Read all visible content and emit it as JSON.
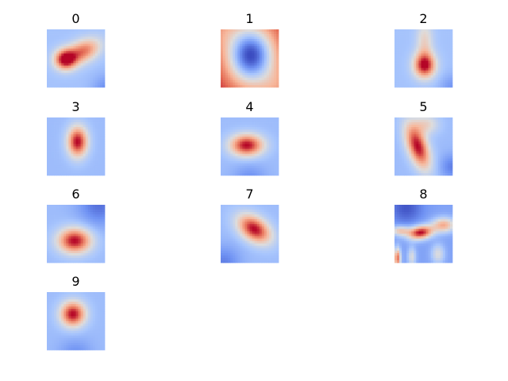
{
  "chart_data": {
    "type": "heatmap",
    "colormap": "coolwarm",
    "colormap_stops": [
      "#3b4cc0",
      "#6f92f3",
      "#aac7fd",
      "#dddcdc",
      "#f7b89c",
      "#e7745b",
      "#b40426"
    ],
    "panels": [
      {
        "title": "0",
        "blobs": [
          {
            "cx": 0.32,
            "cy": 0.52,
            "sx": 0.13,
            "sy": 0.12,
            "rot": 0,
            "w": 1.0
          },
          {
            "cx": 0.62,
            "cy": 0.38,
            "sx": 0.22,
            "sy": 0.13,
            "rot": -25,
            "w": 0.75
          }
        ],
        "edges": [
          {
            "cx": 1.05,
            "cy": 1.05,
            "s": 0.18,
            "w": -0.25
          }
        ],
        "base": 0.32
      },
      {
        "title": "1",
        "invert": true,
        "blobs": [
          {
            "cx": 0.52,
            "cy": 0.45,
            "sx": 0.28,
            "sy": 0.34,
            "rot": 0,
            "w": 1.0
          }
        ],
        "edges": [
          {
            "cx": 0.0,
            "cy": 0.0,
            "s": 0.25,
            "w": 0.15
          },
          {
            "cx": 1.0,
            "cy": 1.0,
            "s": 0.25,
            "w": 0.18
          }
        ],
        "base": 0.05
      },
      {
        "title": "2",
        "blobs": [
          {
            "cx": 0.52,
            "cy": 0.62,
            "sx": 0.13,
            "sy": 0.15,
            "rot": 0,
            "w": 1.0
          },
          {
            "cx": 0.52,
            "cy": 0.2,
            "sx": 0.1,
            "sy": 0.25,
            "rot": 0,
            "w": 0.35
          }
        ],
        "edges": [
          {
            "cx": 1.0,
            "cy": 1.0,
            "s": 0.15,
            "w": -0.2
          }
        ],
        "base": 0.32
      },
      {
        "title": "3",
        "blobs": [
          {
            "cx": 0.53,
            "cy": 0.42,
            "sx": 0.12,
            "sy": 0.18,
            "rot": 0,
            "w": 1.0
          }
        ],
        "edges": [],
        "base": 0.3
      },
      {
        "title": "4",
        "blobs": [
          {
            "cx": 0.45,
            "cy": 0.48,
            "sx": 0.2,
            "sy": 0.13,
            "rot": 0,
            "w": 1.0
          }
        ],
        "edges": [
          {
            "cx": 0.5,
            "cy": 1.1,
            "s": 0.2,
            "w": -0.2
          }
        ],
        "base": 0.3
      },
      {
        "title": "5",
        "blobs": [
          {
            "cx": 0.4,
            "cy": 0.5,
            "sx": 0.12,
            "sy": 0.28,
            "rot": -20,
            "w": 1.0
          },
          {
            "cx": 0.55,
            "cy": 0.12,
            "sx": 0.15,
            "sy": 0.12,
            "rot": 0,
            "w": 0.35
          }
        ],
        "edges": [
          {
            "cx": 1.0,
            "cy": 0.85,
            "s": 0.15,
            "w": -0.25
          }
        ],
        "base": 0.3
      },
      {
        "title": "6",
        "blobs": [
          {
            "cx": 0.48,
            "cy": 0.62,
            "sx": 0.2,
            "sy": 0.15,
            "rot": 0,
            "w": 1.0
          }
        ],
        "edges": [
          {
            "cx": 0.9,
            "cy": 0.0,
            "s": 0.25,
            "w": -0.3
          }
        ],
        "base": 0.3
      },
      {
        "title": "7",
        "blobs": [
          {
            "cx": 0.58,
            "cy": 0.42,
            "sx": 0.22,
            "sy": 0.14,
            "rot": 35,
            "w": 1.0
          }
        ],
        "edges": [
          {
            "cx": 0.05,
            "cy": 1.0,
            "s": 0.2,
            "w": -0.25
          }
        ],
        "base": 0.3
      },
      {
        "title": "8",
        "blobs": [
          {
            "cx": 0.45,
            "cy": 0.48,
            "sx": 0.15,
            "sy": 0.08,
            "rot": -10,
            "w": 1.0
          },
          {
            "cx": 0.85,
            "cy": 0.35,
            "sx": 0.14,
            "sy": 0.09,
            "rot": 0,
            "w": 0.6
          },
          {
            "cx": 0.1,
            "cy": 0.45,
            "sx": 0.12,
            "sy": 0.06,
            "rot": 0,
            "w": 0.5
          },
          {
            "cx": 0.05,
            "cy": 0.92,
            "sx": 0.04,
            "sy": 0.12,
            "rot": 0,
            "w": 0.8
          },
          {
            "cx": 0.3,
            "cy": 0.9,
            "sx": 0.05,
            "sy": 0.12,
            "rot": 0,
            "w": 0.35
          },
          {
            "cx": 0.75,
            "cy": 0.85,
            "sx": 0.08,
            "sy": 0.12,
            "rot": 0,
            "w": 0.35
          }
        ],
        "edges": [
          {
            "cx": 0.2,
            "cy": 0.05,
            "s": 0.2,
            "w": -0.25
          }
        ],
        "base": 0.22
      },
      {
        "title": "9",
        "blobs": [
          {
            "cx": 0.45,
            "cy": 0.38,
            "sx": 0.15,
            "sy": 0.15,
            "rot": 0,
            "w": 1.0
          }
        ],
        "edges": [
          {
            "cx": 0.5,
            "cy": 1.1,
            "s": 0.2,
            "w": -0.2
          }
        ],
        "base": 0.3
      }
    ],
    "grid": false,
    "axes": "off"
  }
}
